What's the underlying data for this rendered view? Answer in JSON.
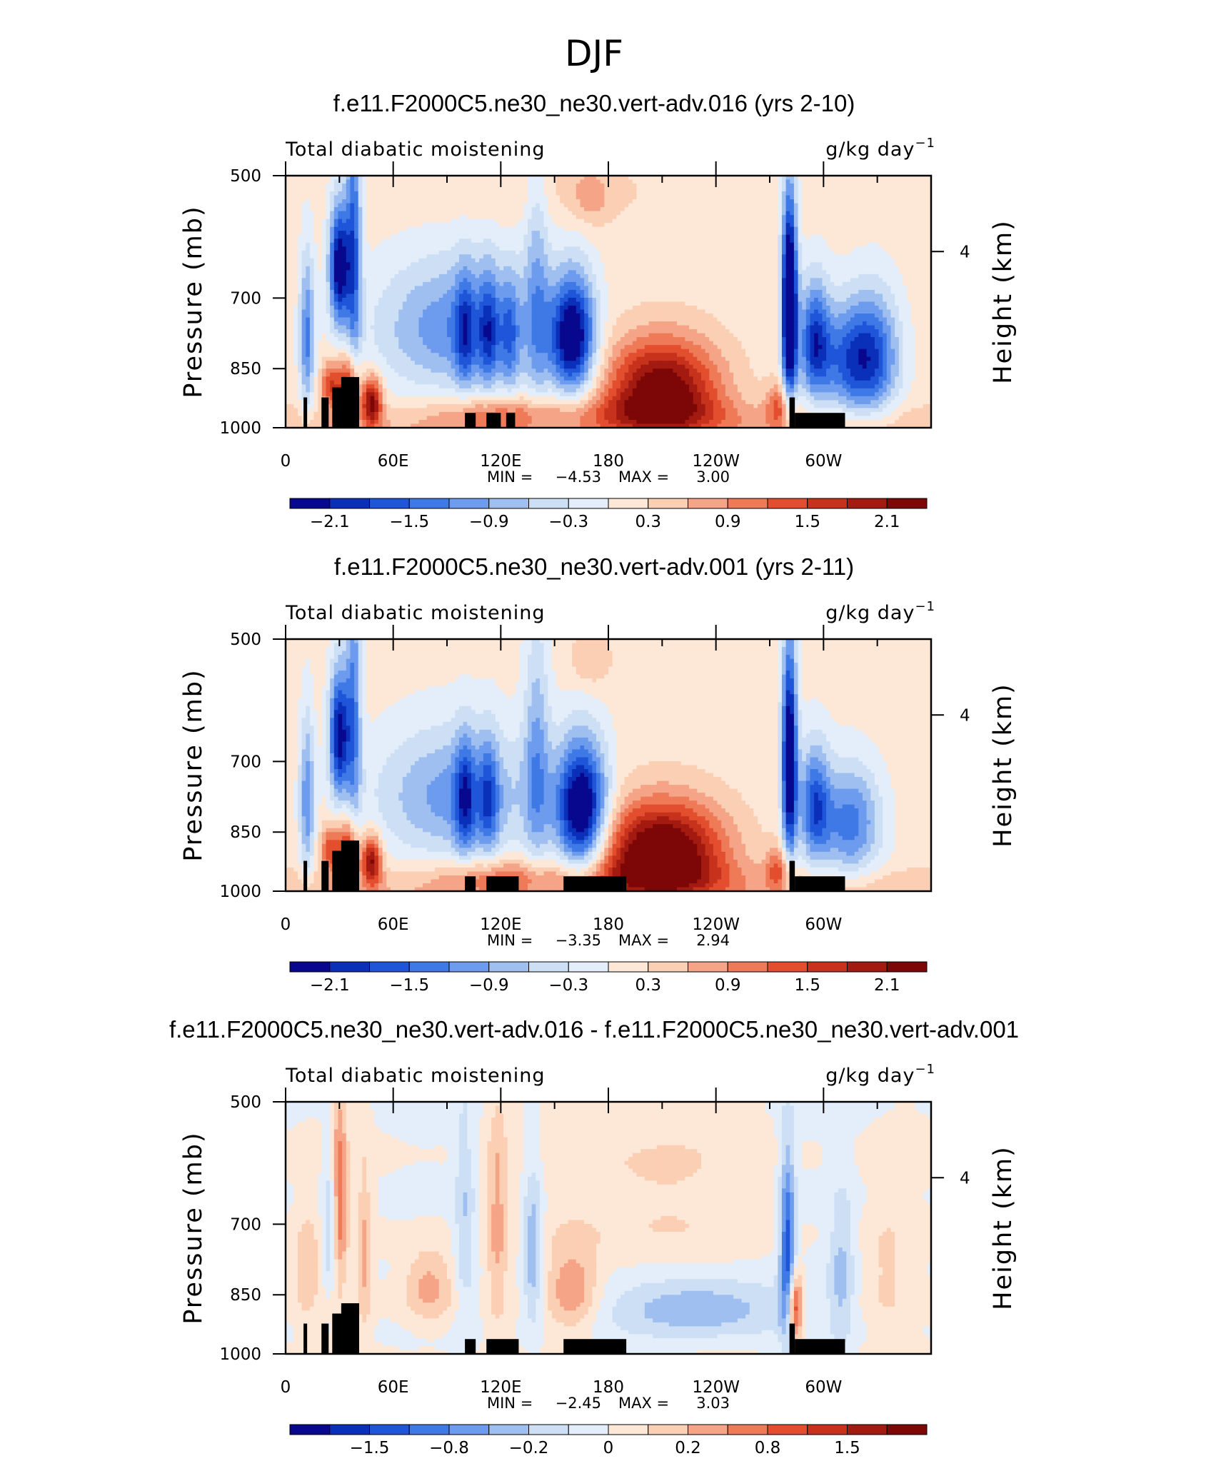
{
  "figure_title": "DJF",
  "colors": {
    "palette": [
      "#08088f",
      "#0a2fb8",
      "#1f55d8",
      "#3f79e6",
      "#6d9bee",
      "#9ebfef",
      "#cddff5",
      "#e3eefa",
      "#fde8d8",
      "#fbcfb3",
      "#f6a487",
      "#ee7a58",
      "#e24e2e",
      "#c7321c",
      "#a31a10",
      "#7d0606"
    ],
    "land": "#000000"
  },
  "chart_data": [
    {
      "type": "contour",
      "title": "f.e11.F2000C5.ne30_ne30.vert-adv.016 (yrs 2-10)",
      "left_label": "Total diabatic moistening",
      "units_base": "g/kg day",
      "units_exp": "−1",
      "ylabel": "Pressure (mb)",
      "ylabel_right": "Height (km)",
      "y_ticks": [
        "500",
        "700",
        "850",
        "1000"
      ],
      "y_right_ticks": [
        "4"
      ],
      "x_ticks": [
        "0",
        "60E",
        "120E",
        "180",
        "120W",
        "60W"
      ],
      "min_label": "MIN =",
      "min_value": "−4.53",
      "max_label": "MAX =",
      "max_value": "3.00",
      "colorbar_labels": [
        "−2.1",
        "−1.5",
        "−0.9",
        "−0.3",
        "0.3",
        "0.9",
        "1.5",
        "2.1"
      ],
      "features": [
        {
          "lon": 30,
          "p": 640,
          "amp": -2.6,
          "wlon": 4,
          "wp": 75
        },
        {
          "lon": 38,
          "p": 600,
          "amp": -1.6,
          "wlon": 3,
          "wp": 180
        },
        {
          "lon": 12,
          "p": 780,
          "amp": -1.4,
          "wlon": 3,
          "wp": 120
        },
        {
          "lon": 35,
          "p": 890,
          "amp": 1.7,
          "wlon": 4,
          "wp": 55
        },
        {
          "lon": 48,
          "p": 930,
          "amp": 2.1,
          "wlon": 4,
          "wp": 45
        },
        {
          "lon": 25,
          "p": 890,
          "amp": 1.4,
          "wlon": 4,
          "wp": 40
        },
        {
          "lon": 95,
          "p": 760,
          "amp": -1.3,
          "wlon": 32,
          "wp": 100
        },
        {
          "lon": 100,
          "p": 770,
          "amp": -1.1,
          "wlon": 4,
          "wp": 90
        },
        {
          "lon": 113,
          "p": 770,
          "amp": -1.2,
          "wlon": 4,
          "wp": 90
        },
        {
          "lon": 125,
          "p": 780,
          "amp": -1.0,
          "wlon": 4,
          "wp": 90
        },
        {
          "lon": 140,
          "p": 700,
          "amp": -0.9,
          "wlon": 5,
          "wp": 170
        },
        {
          "lon": 160,
          "p": 780,
          "amp": -2.7,
          "wlon": 9,
          "wp": 90
        },
        {
          "lon": 120,
          "p": 960,
          "amp": 0.8,
          "wlon": 25,
          "wp": 35
        },
        {
          "lon": 210,
          "p": 890,
          "amp": 2.2,
          "wlon": 22,
          "wp": 80
        },
        {
          "lon": 205,
          "p": 960,
          "amp": 0.8,
          "wlon": 30,
          "wp": 40
        },
        {
          "lon": 281,
          "p": 720,
          "amp": -3.6,
          "wlon": 3,
          "wp": 140
        },
        {
          "lon": 295,
          "p": 790,
          "amp": -1.9,
          "wlon": 6,
          "wp": 90
        },
        {
          "lon": 315,
          "p": 830,
          "amp": -1.7,
          "wlon": 12,
          "wp": 90
        },
        {
          "lon": 330,
          "p": 820,
          "amp": -1.2,
          "wlon": 10,
          "wp": 100
        },
        {
          "lon": 275,
          "p": 940,
          "amp": 1.0,
          "wlon": 5,
          "wp": 40
        },
        {
          "lon": 150,
          "p": 520,
          "amp": 0.2,
          "wlon": 60,
          "wp": 40
        },
        {
          "lon": 170,
          "p": 530,
          "amp": 0.5,
          "wlon": 8,
          "wp": 30
        }
      ],
      "land": [
        [
          10,
          920
        ],
        [
          12,
          960
        ],
        [
          20,
          920
        ],
        [
          24,
          960
        ],
        [
          26,
          895
        ],
        [
          32,
          960
        ],
        [
          31,
          870
        ],
        [
          41,
          960
        ],
        [
          100,
          960
        ],
        [
          106,
          980
        ],
        [
          112,
          960
        ],
        [
          120,
          980
        ],
        [
          123,
          960
        ],
        [
          128,
          980
        ],
        [
          282,
          960
        ],
        [
          284,
          980
        ],
        [
          281,
          920
        ],
        [
          284,
          960
        ],
        [
          284,
          960
        ],
        [
          312,
          980
        ]
      ]
    },
    {
      "type": "contour",
      "title": "f.e11.F2000C5.ne30_ne30.vert-adv.001 (yrs 2-11)",
      "left_label": "Total diabatic moistening",
      "units_base": "g/kg day",
      "units_exp": "−1",
      "ylabel": "Pressure (mb)",
      "ylabel_right": "Height (km)",
      "y_ticks": [
        "500",
        "700",
        "850",
        "1000"
      ],
      "y_right_ticks": [
        "4"
      ],
      "x_ticks": [
        "0",
        "60E",
        "120E",
        "180",
        "120W",
        "60W"
      ],
      "min_label": "MIN =",
      "min_value": "−3.35",
      "max_label": "MAX =",
      "max_value": "2.94",
      "colorbar_labels": [
        "−2.1",
        "−1.5",
        "−0.9",
        "−0.3",
        "0.3",
        "0.9",
        "1.5",
        "2.1"
      ],
      "features": [
        {
          "lon": 30,
          "p": 650,
          "amp": -2.4,
          "wlon": 4,
          "wp": 80
        },
        {
          "lon": 38,
          "p": 600,
          "amp": -1.3,
          "wlon": 3,
          "wp": 180
        },
        {
          "lon": 12,
          "p": 780,
          "amp": -1.3,
          "wlon": 3,
          "wp": 120
        },
        {
          "lon": 35,
          "p": 890,
          "amp": 1.6,
          "wlon": 4,
          "wp": 55
        },
        {
          "lon": 48,
          "p": 920,
          "amp": 2.0,
          "wlon": 4,
          "wp": 45
        },
        {
          "lon": 25,
          "p": 890,
          "amp": 1.3,
          "wlon": 4,
          "wp": 40
        },
        {
          "lon": 95,
          "p": 770,
          "amp": -1.2,
          "wlon": 32,
          "wp": 100
        },
        {
          "lon": 100,
          "p": 780,
          "amp": -1.3,
          "wlon": 4,
          "wp": 90
        },
        {
          "lon": 113,
          "p": 780,
          "amp": -1.1,
          "wlon": 4,
          "wp": 90
        },
        {
          "lon": 140,
          "p": 700,
          "amp": -1.0,
          "wlon": 5,
          "wp": 170
        },
        {
          "lon": 165,
          "p": 800,
          "amp": -2.9,
          "wlon": 10,
          "wp": 100
        },
        {
          "lon": 120,
          "p": 960,
          "amp": 0.8,
          "wlon": 25,
          "wp": 35
        },
        {
          "lon": 210,
          "p": 890,
          "amp": 2.5,
          "wlon": 24,
          "wp": 80
        },
        {
          "lon": 205,
          "p": 960,
          "amp": 0.8,
          "wlon": 30,
          "wp": 40
        },
        {
          "lon": 281,
          "p": 700,
          "amp": -2.9,
          "wlon": 3,
          "wp": 150
        },
        {
          "lon": 295,
          "p": 790,
          "amp": -1.7,
          "wlon": 6,
          "wp": 90
        },
        {
          "lon": 315,
          "p": 830,
          "amp": -1.5,
          "wlon": 12,
          "wp": 90
        },
        {
          "lon": 275,
          "p": 940,
          "amp": 1.0,
          "wlon": 5,
          "wp": 40
        },
        {
          "lon": 170,
          "p": 530,
          "amp": 0.5,
          "wlon": 8,
          "wp": 30
        }
      ],
      "land": [
        [
          10,
          920
        ],
        [
          12,
          960
        ],
        [
          20,
          920
        ],
        [
          24,
          960
        ],
        [
          26,
          895
        ],
        [
          32,
          960
        ],
        [
          31,
          870
        ],
        [
          41,
          960
        ],
        [
          100,
          960
        ],
        [
          106,
          980
        ],
        [
          112,
          960
        ],
        [
          130,
          980
        ],
        [
          155,
          960
        ],
        [
          190,
          980
        ],
        [
          282,
          960
        ],
        [
          284,
          980
        ],
        [
          281,
          920
        ],
        [
          284,
          960
        ],
        [
          284,
          960
        ],
        [
          312,
          980
        ]
      ]
    },
    {
      "type": "contour",
      "title": "f.e11.F2000C5.ne30_ne30.vert-adv.016 - f.e11.F2000C5.ne30_ne30.vert-adv.001",
      "left_label": "Total diabatic moistening",
      "units_base": "g/kg day",
      "units_exp": "−1",
      "ylabel": "Pressure (mb)",
      "ylabel_right": "Height (km)",
      "y_ticks": [
        "500",
        "700",
        "850",
        "1000"
      ],
      "y_right_ticks": [
        "4"
      ],
      "x_ticks": [
        "0",
        "60E",
        "120E",
        "180",
        "120W",
        "60W"
      ],
      "min_label": "MIN =",
      "min_value": "−2.45",
      "max_label": "MAX =",
      "max_value": "3.03",
      "colorbar_labels": [
        "−1.5",
        "−0.8",
        "−0.2",
        "0",
        "0.2",
        "0.8",
        "1.5"
      ],
      "features": [
        {
          "lon": 30,
          "p": 650,
          "amp": 1.4,
          "wlon": 3,
          "wp": 120
        },
        {
          "lon": 25,
          "p": 700,
          "amp": -0.9,
          "wlon": 3,
          "wp": 90
        },
        {
          "lon": 44,
          "p": 760,
          "amp": 0.8,
          "wlon": 3,
          "wp": 120
        },
        {
          "lon": 12,
          "p": 790,
          "amp": 0.6,
          "wlon": 5,
          "wp": 80
        },
        {
          "lon": 80,
          "p": 830,
          "amp": 0.9,
          "wlon": 10,
          "wp": 60
        },
        {
          "lon": 100,
          "p": 700,
          "amp": -0.7,
          "wlon": 4,
          "wp": 150
        },
        {
          "lon": 118,
          "p": 700,
          "amp": 0.8,
          "wlon": 4,
          "wp": 150
        },
        {
          "lon": 138,
          "p": 750,
          "amp": -1.1,
          "wlon": 4,
          "wp": 120
        },
        {
          "lon": 160,
          "p": 840,
          "amp": 1.0,
          "wlon": 10,
          "wp": 70
        },
        {
          "lon": 230,
          "p": 880,
          "amp": -1.1,
          "wlon": 35,
          "wp": 50
        },
        {
          "lon": 200,
          "p": 640,
          "amp": 0.4,
          "wlon": 40,
          "wp": 120
        },
        {
          "lon": 280,
          "p": 760,
          "amp": -2.0,
          "wlon": 3,
          "wp": 140
        },
        {
          "lon": 284,
          "p": 880,
          "amp": 2.2,
          "wlon": 3,
          "wp": 60
        },
        {
          "lon": 310,
          "p": 800,
          "amp": -0.8,
          "wlon": 5,
          "wp": 120
        },
        {
          "lon": 335,
          "p": 800,
          "amp": 0.4,
          "wlon": 8,
          "wp": 100
        }
      ],
      "land": [
        [
          10,
          920
        ],
        [
          12,
          960
        ],
        [
          20,
          920
        ],
        [
          24,
          960
        ],
        [
          26,
          895
        ],
        [
          32,
          960
        ],
        [
          31,
          870
        ],
        [
          41,
          960
        ],
        [
          100,
          960
        ],
        [
          106,
          980
        ],
        [
          112,
          960
        ],
        [
          130,
          980
        ],
        [
          155,
          960
        ],
        [
          190,
          980
        ],
        [
          282,
          960
        ],
        [
          284,
          980
        ],
        [
          281,
          920
        ],
        [
          284,
          960
        ],
        [
          284,
          960
        ],
        [
          312,
          980
        ]
      ]
    }
  ]
}
